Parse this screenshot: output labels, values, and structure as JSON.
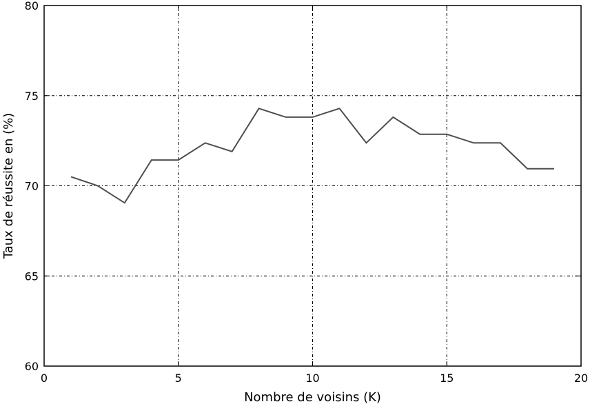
{
  "chart_data": {
    "type": "line",
    "title": "",
    "xlabel": "Nombre de voisins (K)",
    "ylabel": "Taux de réussite en (%)",
    "xlim": [
      0,
      20
    ],
    "ylim": [
      60,
      80
    ],
    "xticks": [
      0,
      5,
      10,
      15,
      20
    ],
    "yticks": [
      60,
      65,
      70,
      75,
      80
    ],
    "grid": true,
    "grid_style": "dashed",
    "line_color": "#4d4d4d",
    "series": [
      {
        "x": [
          1,
          2,
          3,
          4,
          5,
          6,
          7,
          8,
          9,
          10,
          11,
          12,
          13,
          14,
          15,
          16,
          17,
          18,
          19
        ],
        "values": [
          70.5,
          70.0,
          69.05,
          71.43,
          71.43,
          72.38,
          71.9,
          74.29,
          73.81,
          73.81,
          74.29,
          72.38,
          73.81,
          72.86,
          72.86,
          72.38,
          72.38,
          70.95,
          70.95
        ]
      }
    ]
  }
}
